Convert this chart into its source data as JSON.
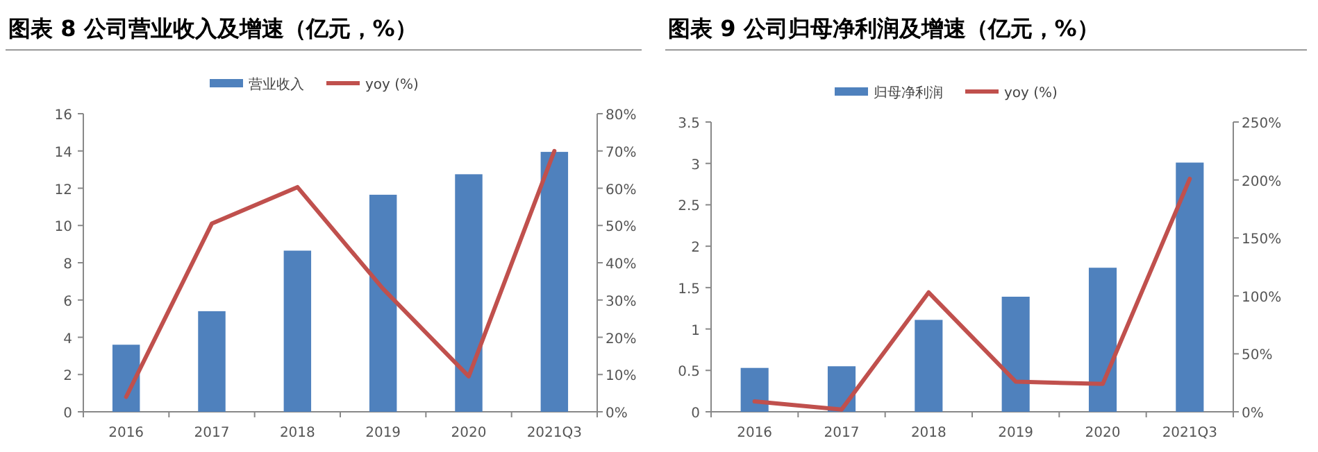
{
  "chart_data": [
    {
      "type": "bar",
      "title": "图表 8 公司营业收入及增速（亿元，%）",
      "categories": [
        "2016",
        "2017",
        "2018",
        "2019",
        "2020",
        "2021Q3"
      ],
      "series": [
        {
          "name": "营业收入",
          "color": "#4f81bd",
          "values": [
            3.6,
            5.4,
            8.65,
            11.65,
            12.75,
            13.95
          ]
        },
        {
          "name": "yoy (%)",
          "type": "line",
          "axis": "y2",
          "color": "#c0504d",
          "values": [
            4,
            50.5,
            60.3,
            33,
            9.5,
            70
          ]
        }
      ],
      "ylim": [
        0,
        16
      ],
      "yticks": [
        0,
        2,
        4,
        6,
        8,
        10,
        12,
        14,
        16
      ],
      "y2lim": [
        0,
        80
      ],
      "y2ticks": [
        {
          "value": 0,
          "label": "0%"
        },
        {
          "value": 10,
          "label": "10%"
        },
        {
          "value": 20,
          "label": "20%"
        },
        {
          "value": 30,
          "label": "30%"
        },
        {
          "value": 40,
          "label": "40%"
        },
        {
          "value": 50,
          "label": "50%"
        },
        {
          "value": 60,
          "label": "60%"
        },
        {
          "value": 70,
          "label": "70%"
        },
        {
          "value": 80,
          "label": "80%"
        }
      ],
      "legend": "top",
      "grid": false
    },
    {
      "type": "bar",
      "title": "图表 9 公司归母净利润及增速（亿元，%）",
      "categories": [
        "2016",
        "2017",
        "2018",
        "2019",
        "2020",
        "2021Q3"
      ],
      "series": [
        {
          "name": "归母净利润",
          "color": "#4f81bd",
          "values": [
            0.53,
            0.55,
            1.11,
            1.39,
            1.74,
            3.01
          ]
        },
        {
          "name": "yoy (%)",
          "type": "line",
          "axis": "y2",
          "color": "#c0504d",
          "values": [
            9,
            2,
            103,
            26,
            24,
            201
          ]
        }
      ],
      "ylim": [
        0,
        3.5
      ],
      "yticks": [
        0,
        0.5,
        1,
        1.5,
        2,
        2.5,
        3,
        3.5
      ],
      "y2lim": [
        0,
        250
      ],
      "y2ticks": [
        {
          "value": 0,
          "label": "0%"
        },
        {
          "value": 50,
          "label": "50%"
        },
        {
          "value": 100,
          "label": "100%"
        },
        {
          "value": 150,
          "label": "150%"
        },
        {
          "value": 200,
          "label": "200%"
        },
        {
          "value": 250,
          "label": "250%"
        }
      ],
      "legend": "top",
      "grid": false
    }
  ]
}
